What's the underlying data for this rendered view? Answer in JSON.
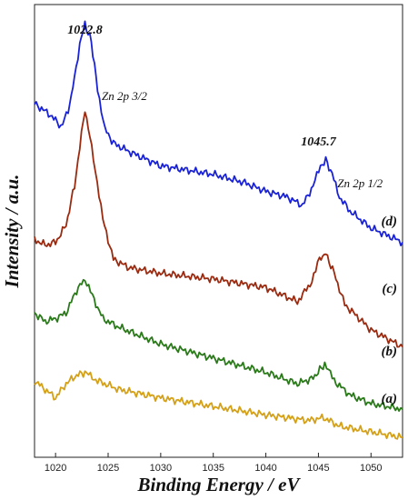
{
  "chart_data": {
    "type": "line",
    "xlabel": "Binding Energy / eV",
    "ylabel": "Intensity / a.u.",
    "xlim": [
      1018,
      1053
    ],
    "xticks": [
      1020,
      1025,
      1030,
      1035,
      1040,
      1045,
      1050
    ],
    "y_ticks_shown": false,
    "grid": false,
    "legend": "none",
    "y_units": "arbitrary (stacked, offset)",
    "peak_annotations": [
      {
        "text": "1022.8",
        "x": 1022.8
      },
      {
        "text": "1045.7",
        "x": 1045.7
      }
    ],
    "region_labels": [
      {
        "text": "Zn 2p 3/2",
        "near_x": 1022.8
      },
      {
        "text": "Zn 2p 1/2",
        "near_x": 1045.7
      }
    ],
    "series": [
      {
        "name": "(a)",
        "color": "#d4a017",
        "x": [
          1018,
          1020,
          1021,
          1022,
          1022.8,
          1024,
          1026,
          1030,
          1035,
          1040,
          1044,
          1045.5,
          1047,
          1050,
          1053
        ],
        "y": [
          0.95,
          0.65,
          0.9,
          1.05,
          1.1,
          0.95,
          0.8,
          0.65,
          0.5,
          0.35,
          0.25,
          0.3,
          0.15,
          0.05,
          -0.05
        ]
      },
      {
        "name": "(b)",
        "color": "#2a7a1a",
        "x": [
          1018,
          1019,
          1020,
          1021,
          1022,
          1022.8,
          1023.5,
          1024.5,
          1026,
          1030,
          1035,
          1040,
          1043,
          1044.5,
          1045.6,
          1046.5,
          1048,
          1050,
          1053
        ],
        "y": [
          2.15,
          2.0,
          2.05,
          2.15,
          2.55,
          2.75,
          2.45,
          2.05,
          1.9,
          1.6,
          1.35,
          1.1,
          0.9,
          1.0,
          1.25,
          0.95,
          0.7,
          0.55,
          0.45
        ]
      },
      {
        "name": "(c)",
        "color": "#9a2a10",
        "x": [
          1018,
          1019,
          1020,
          1021,
          1021.8,
          1022.8,
          1023.6,
          1024.5,
          1025.5,
          1027,
          1030,
          1035,
          1040,
          1043,
          1044.2,
          1045.1,
          1045.7,
          1046.5,
          1047.5,
          1050,
          1053
        ],
        "y": [
          3.45,
          3.35,
          3.4,
          3.7,
          4.4,
          5.75,
          4.9,
          3.8,
          3.1,
          2.95,
          2.85,
          2.75,
          2.6,
          2.35,
          2.65,
          3.1,
          3.2,
          2.85,
          2.3,
          1.85,
          1.55
        ]
      },
      {
        "name": "(d)",
        "color": "#1a22d6",
        "x": [
          1018,
          1019.5,
          1020.5,
          1021.2,
          1021.8,
          1022.3,
          1022.8,
          1023.4,
          1024,
          1024.7,
          1025.5,
          1027,
          1030,
          1035,
          1038,
          1040,
          1042,
          1043.5,
          1044.5,
          1045.2,
          1045.7,
          1046.3,
          1047,
          1048,
          1050,
          1053
        ],
        "y": [
          5.85,
          5.65,
          5.45,
          5.7,
          6.3,
          6.9,
          7.25,
          6.95,
          6.1,
          5.4,
          5.15,
          5.0,
          4.75,
          4.6,
          4.45,
          4.3,
          4.2,
          4.05,
          4.4,
          4.75,
          4.85,
          4.6,
          4.2,
          3.95,
          3.65,
          3.4
        ]
      }
    ]
  }
}
